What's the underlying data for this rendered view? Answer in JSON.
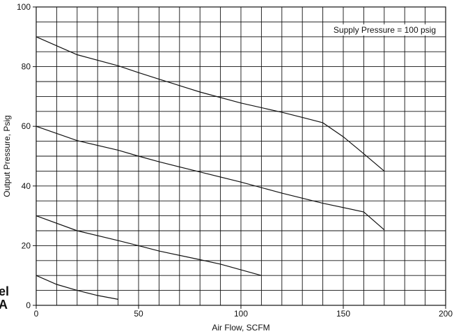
{
  "cropped_text": [
    "el",
    "A"
  ],
  "chart_data": {
    "type": "line",
    "title": "",
    "xlabel": "Air Flow, SCFM",
    "ylabel": "Output Pressure, Psig",
    "xlim": [
      0,
      200
    ],
    "ylim": [
      0,
      100
    ],
    "xticks": [
      0,
      50,
      100,
      150,
      200
    ],
    "yticks": [
      0,
      20,
      40,
      60,
      80,
      100
    ],
    "grid": true,
    "annotation": "Supply Pressure = 100 psig",
    "line_color": "#111111",
    "series": [
      {
        "x": [
          0,
          20,
          40,
          50,
          60,
          80,
          100,
          120,
          130,
          140,
          150,
          160,
          170
        ],
        "y": [
          90,
          84,
          80.3,
          78,
          75.8,
          71.5,
          67.8,
          64.7,
          63,
          61.2,
          56.5,
          50.8,
          45
        ]
      },
      {
        "x": [
          0,
          20,
          40,
          50,
          60,
          80,
          100,
          120,
          140,
          160,
          170
        ],
        "y": [
          60,
          55.2,
          52,
          50,
          48.1,
          44.7,
          41.3,
          37.6,
          34.2,
          31.3,
          25.3
        ]
      },
      {
        "x": [
          0,
          20,
          40,
          50,
          60,
          80,
          90,
          100,
          110
        ],
        "y": [
          30,
          25,
          21.7,
          20,
          18.2,
          15.3,
          13.8,
          11.9,
          10
        ]
      },
      {
        "x": [
          0,
          10,
          20,
          30,
          40
        ],
        "y": [
          10,
          7,
          5,
          3.3,
          2
        ]
      }
    ]
  }
}
